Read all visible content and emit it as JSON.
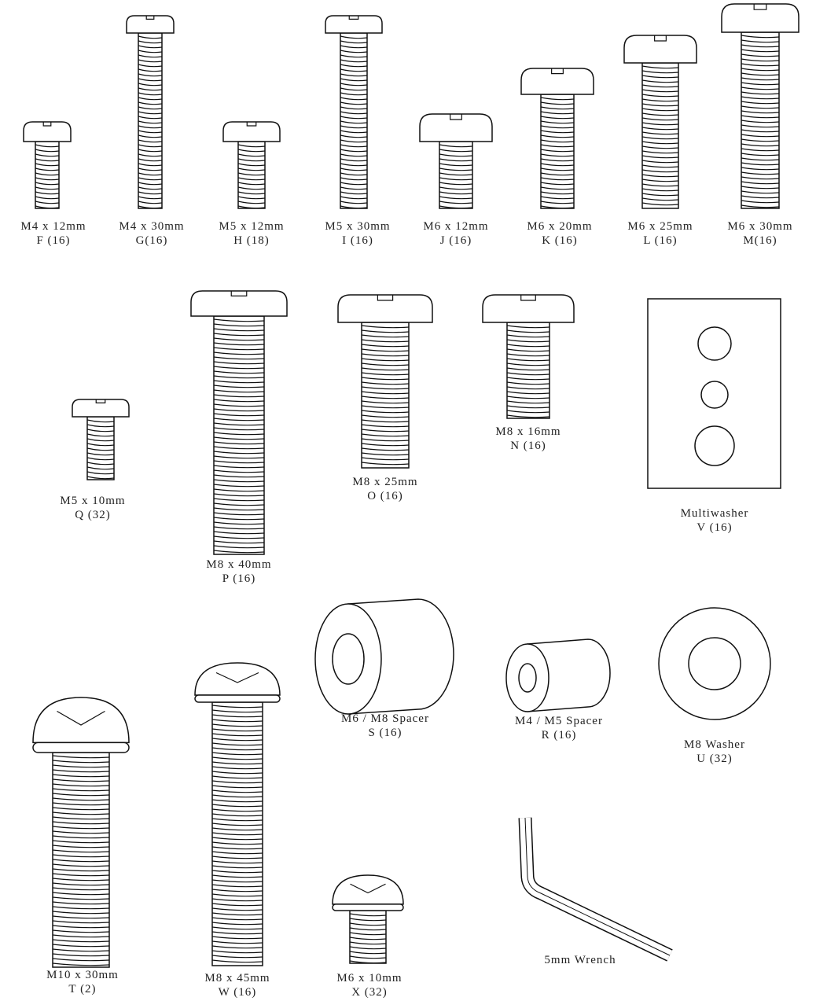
{
  "items": [
    {
      "label": "M4 x 12mm",
      "code": "F (16)"
    },
    {
      "label": "M4 x 30mm",
      "code": "G(16)"
    },
    {
      "label": "M5 x 12mm",
      "code": "H (18)"
    },
    {
      "label": "M5 x 30mm",
      "code": "I (16)"
    },
    {
      "label": "M6 x 12mm",
      "code": "J (16)"
    },
    {
      "label": "M6 x 20mm",
      "code": "K (16)"
    },
    {
      "label": "M6 x 25mm",
      "code": "L (16)"
    },
    {
      "label": "M6 x 30mm",
      "code": "M(16)"
    },
    {
      "label": "M5 x 10mm",
      "code": "Q (32)"
    },
    {
      "label": "M8 x 40mm",
      "code": "P (16)"
    },
    {
      "label": "M8 x 25mm",
      "code": "O (16)"
    },
    {
      "label": "M8 x 16mm",
      "code": "N (16)"
    },
    {
      "label": "Multiwasher",
      "code": "V (16)"
    },
    {
      "label": "M6 / M8 Spacer",
      "code": "S (16)"
    },
    {
      "label": "M4 / M5 Spacer",
      "code": "R (16)"
    },
    {
      "label": "M8 Washer",
      "code": "U (32)"
    },
    {
      "label": "5mm Wrench"
    },
    {
      "label": "M10 x 30mm",
      "code": "T (2)"
    },
    {
      "label": "M8 x 45mm",
      "code": "W (16)"
    },
    {
      "label": "M6 x 10mm",
      "code": "X  (32)"
    }
  ]
}
